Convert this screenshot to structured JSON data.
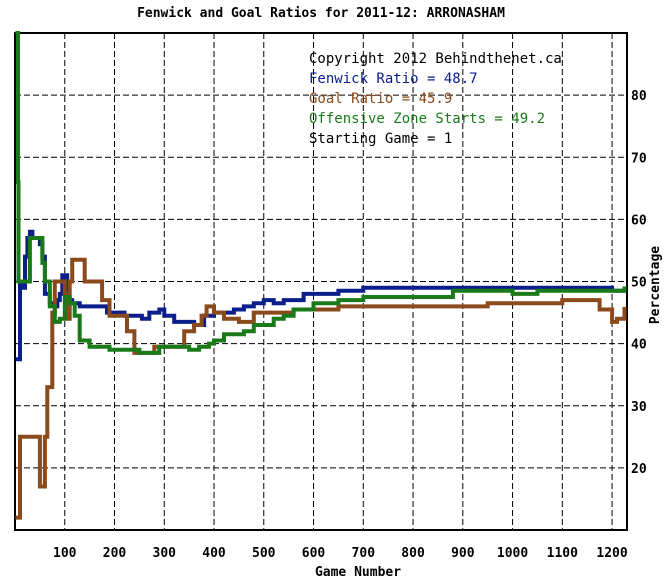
{
  "chart_data": {
    "type": "line",
    "title": "Fenwick and Goal Ratios for 2011-12: ARRONASHAM",
    "xlabel": "Game Number",
    "ylabel": "Percentage",
    "xlim": [
      0,
      1230
    ],
    "ylim": [
      10,
      90
    ],
    "x_ticks": [
      100,
      200,
      300,
      400,
      500,
      600,
      700,
      800,
      900,
      1000,
      1100,
      1200
    ],
    "y_ticks": [
      20,
      30,
      40,
      50,
      60,
      70,
      80
    ],
    "x_tick_labels": [
      "100",
      "200",
      "300",
      "400",
      "500",
      "600",
      "700",
      "800",
      "900",
      "1000",
      "1100",
      "1200"
    ],
    "y_tick_labels": [
      "20",
      "30",
      "40",
      "50",
      "60",
      "70",
      "80"
    ],
    "grid": true,
    "annotations": [
      {
        "text": "Copyright 2012 Behindthenet.ca",
        "color": "#000000"
      },
      {
        "text": "Fenwick Ratio = 48.7",
        "color": "#0a1e8c"
      },
      {
        "text": "Goal Ratio = 45.9",
        "color": "#8b4a1c"
      },
      {
        "text": "Offensive Zone Starts = 49.2",
        "color": "#1a7a1a"
      },
      {
        "text": "Starting Game = 1",
        "color": "#000000"
      }
    ],
    "series": [
      {
        "name": "Fenwick Ratio",
        "color": "#0a1e8c",
        "x": [
          1,
          6,
          10,
          15,
          20,
          25,
          30,
          35,
          40,
          45,
          50,
          55,
          60,
          70,
          80,
          85,
          90,
          95,
          100,
          105,
          115,
          130,
          150,
          170,
          185,
          200,
          220,
          240,
          255,
          270,
          290,
          300,
          320,
          340,
          360,
          380,
          400,
          420,
          440,
          460,
          480,
          500,
          520,
          540,
          560,
          580,
          600,
          650,
          700,
          750,
          800,
          850,
          900,
          950,
          1000,
          1050,
          1100,
          1150,
          1200,
          1225
        ],
        "y": [
          37.5,
          37.5,
          50,
          49,
          54,
          57,
          58,
          57,
          57,
          57,
          56,
          54,
          48,
          46.5,
          46,
          47,
          48,
          51,
          51,
          47,
          46.5,
          46,
          46,
          46,
          45,
          45,
          44.5,
          44.5,
          44,
          45,
          45.5,
          44.5,
          43.5,
          43.5,
          43,
          44.5,
          45,
          45,
          45.5,
          46,
          46.5,
          47,
          46.5,
          47,
          47,
          48,
          48,
          48.5,
          49,
          49,
          49,
          49,
          49,
          49,
          49,
          49,
          49,
          49,
          48.5,
          48.7
        ]
      },
      {
        "name": "Goal Ratio",
        "color": "#8b4a1c",
        "x": [
          1,
          5,
          8,
          10,
          15,
          20,
          25,
          30,
          35,
          40,
          45,
          50,
          55,
          60,
          65,
          70,
          75,
          80,
          85,
          90,
          95,
          100,
          105,
          110,
          115,
          120,
          125,
          130,
          140,
          150,
          160,
          175,
          190,
          210,
          225,
          240,
          260,
          280,
          300,
          320,
          340,
          350,
          360,
          375,
          385,
          400,
          420,
          450,
          480,
          500,
          530,
          560,
          600,
          650,
          700,
          750,
          800,
          850,
          900,
          950,
          1000,
          1050,
          1100,
          1150,
          1175,
          1190,
          1200,
          1210,
          1225
        ],
        "y": [
          12,
          12,
          12,
          25,
          25,
          25,
          25,
          25,
          25,
          25,
          25,
          17,
          17,
          25,
          33,
          33,
          45,
          50,
          50,
          50,
          50,
          48,
          44,
          50,
          53.5,
          53.5,
          53.5,
          53.5,
          50,
          50,
          50,
          47,
          44.5,
          44.5,
          42,
          38.5,
          38.5,
          39.5,
          39.5,
          39.5,
          42,
          42,
          43,
          44.5,
          46,
          45,
          44,
          43.5,
          45,
          45,
          45,
          45.5,
          45.5,
          46,
          46,
          46,
          46,
          46,
          46,
          46.5,
          46.5,
          46.5,
          47,
          47,
          45.5,
          45.5,
          43.5,
          44,
          45.9
        ]
      },
      {
        "name": "Offensive Zone Starts",
        "color": "#1a7a1a",
        "x": [
          1,
          4,
          6,
          7,
          8,
          10,
          15,
          20,
          25,
          30,
          40,
          50,
          55,
          60,
          70,
          80,
          90,
          100,
          110,
          120,
          130,
          150,
          170,
          190,
          210,
          230,
          250,
          270,
          290,
          310,
          330,
          350,
          370,
          390,
          400,
          420,
          440,
          460,
          480,
          500,
          520,
          540,
          560,
          600,
          650,
          700,
          750,
          800,
          850,
          880,
          900,
          950,
          1000,
          1050,
          1100,
          1150,
          1200,
          1225
        ],
        "y": [
          90,
          90,
          66,
          50,
          50,
          50,
          50,
          50,
          50,
          57,
          57,
          57,
          53,
          50,
          46,
          43.5,
          44,
          47.5,
          46.5,
          44.5,
          40.5,
          39.5,
          39.5,
          39,
          39,
          39,
          38.5,
          38.5,
          39.5,
          39.5,
          39.5,
          39,
          39.5,
          40,
          40.5,
          41.5,
          41.5,
          42,
          43,
          43,
          44,
          44.5,
          45.5,
          46.5,
          47,
          47.5,
          47.5,
          47.5,
          47.5,
          48.5,
          48.5,
          48.5,
          48,
          48.5,
          48.5,
          48.5,
          48.5,
          49.2
        ]
      }
    ]
  }
}
